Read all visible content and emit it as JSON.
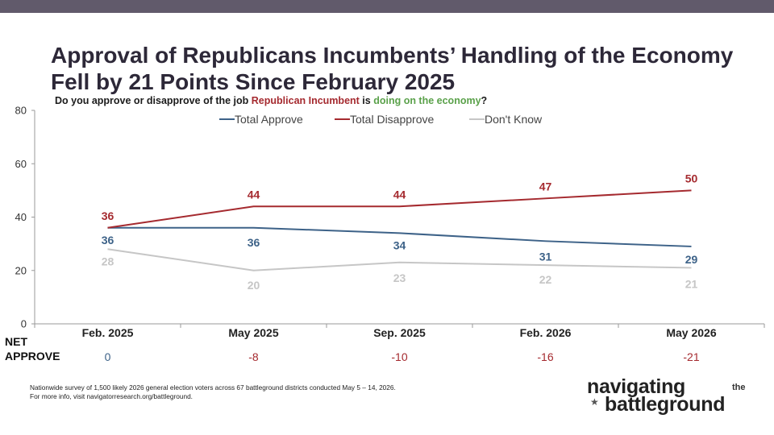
{
  "header": {
    "title_line1": "Approval of Republicans Incumbents’ Handling of the Economy",
    "title_line2": "Fell by 21 Points Since February 2025"
  },
  "question": {
    "part1": "Do you approve or disapprove of the job ",
    "highlight1": "Republican Incumbent",
    "part2": " is ",
    "highlight2": "doing on the economy",
    "part3": "?"
  },
  "net_approve": {
    "label_line1": "NET",
    "label_line2": "APPROVE",
    "values": [
      "0",
      "-8",
      "-10",
      "-16",
      "-21"
    ]
  },
  "footnote": {
    "line1": "Nationwide survey of 1,500 likely 2026 general election voters across 67 battleground districts conducted May 5 – 14, 2026.",
    "line2": "For more info, visit navigatorresearch.org/battleground."
  },
  "logo": {
    "word1": "navigating",
    "word2": "the",
    "word3": "battleground"
  },
  "colors": {
    "approve": "#3d6288",
    "disapprove": "#a52a2f",
    "dont_know": "#c6c6c6",
    "net_positive": "#3d6288",
    "net_negative": "#a52a2f"
  },
  "chart_data": {
    "type": "line",
    "categories": [
      "Feb. 2025",
      "May 2025",
      "Sep. 2025",
      "Feb. 2026",
      "May 2026"
    ],
    "series": [
      {
        "name": "Total Approve",
        "values": [
          36,
          36,
          34,
          31,
          29
        ],
        "color": "#3d6288"
      },
      {
        "name": "Total Disapprove",
        "values": [
          36,
          44,
          44,
          47,
          50
        ],
        "color": "#a52a2f"
      },
      {
        "name": "Don't Know",
        "values": [
          28,
          20,
          23,
          22,
          21
        ],
        "color": "#c6c6c6"
      }
    ],
    "ylim": [
      0,
      80
    ],
    "yticks": [
      0,
      20,
      40,
      60,
      80
    ],
    "grid": false,
    "legend": "top-center"
  }
}
